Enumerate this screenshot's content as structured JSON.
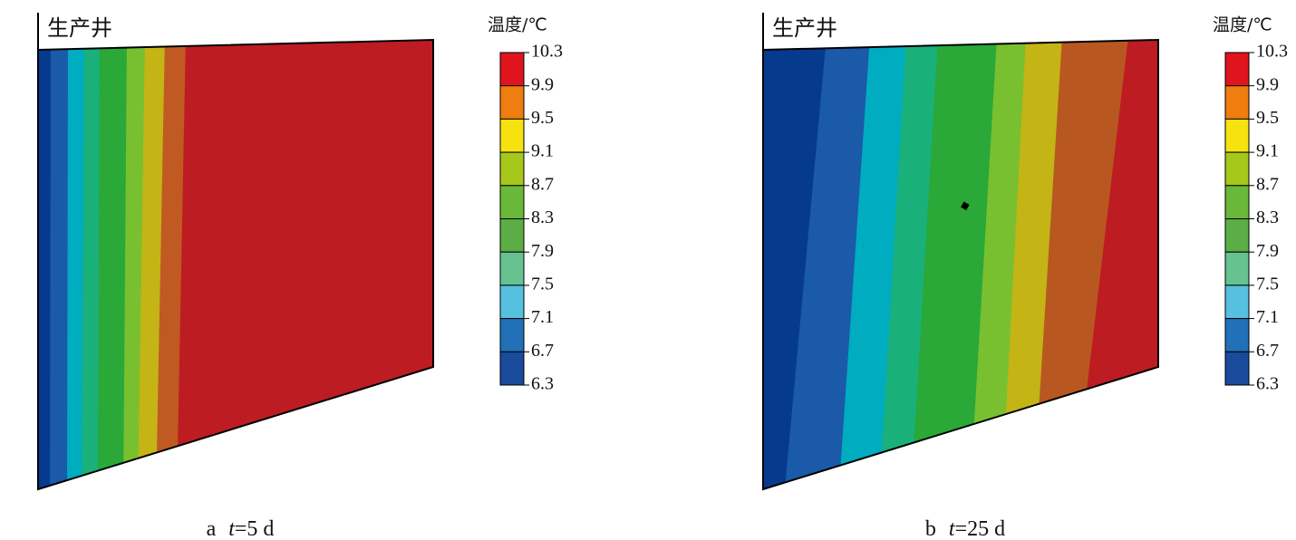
{
  "panels": [
    {
      "well_label": "生产井",
      "caption": {
        "letter": "a",
        "variable": "t",
        "value": "=5 d"
      }
    },
    {
      "well_label": "生产井",
      "caption": {
        "letter": "b",
        "variable": "t",
        "value": "=25 d"
      }
    }
  ],
  "colorbar": {
    "title": "温度/℃",
    "ticks": [
      10.3,
      9.9,
      9.5,
      9.1,
      8.7,
      8.3,
      7.9,
      7.5,
      7.1,
      6.7,
      6.3
    ],
    "colors": [
      "#e0141c",
      "#ef7d0f",
      "#f5e20f",
      "#a6c81a",
      "#6ab83a",
      "#5aae45",
      "#66c290",
      "#56c0e0",
      "#2170b8",
      "#1a4a9c"
    ]
  }
}
